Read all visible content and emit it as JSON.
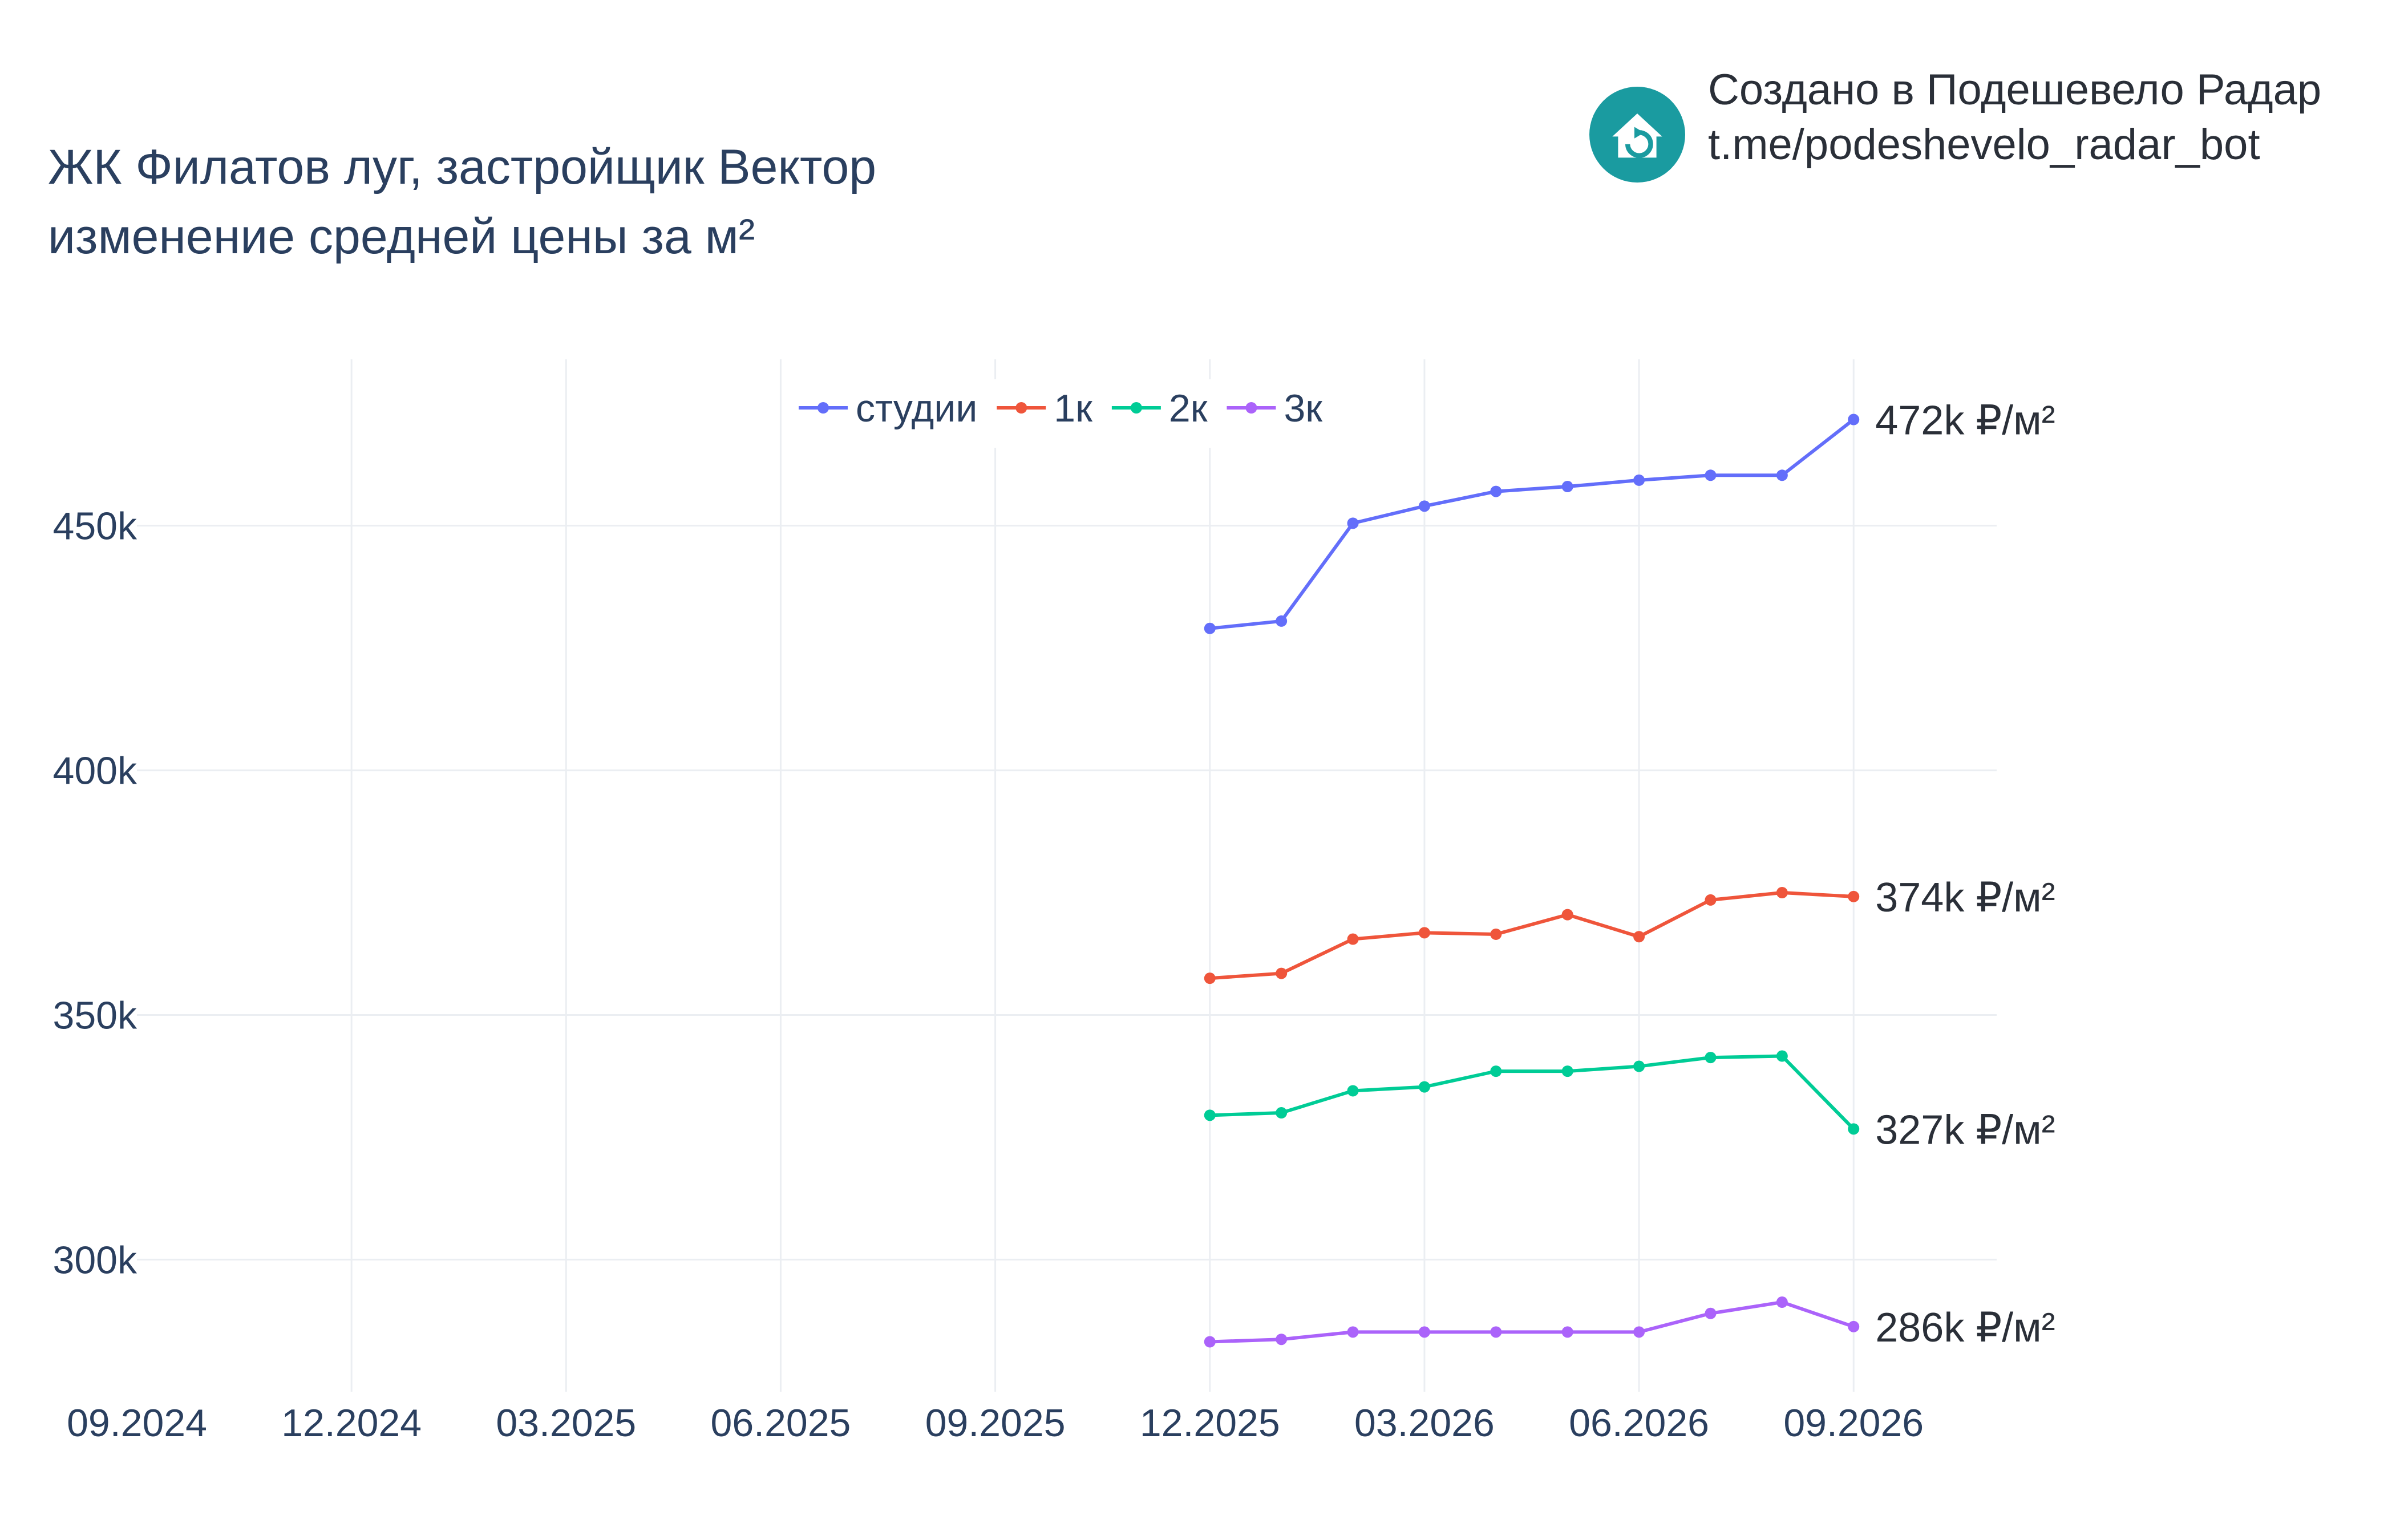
{
  "title": {
    "line1": "ЖК Филатов луг, застройщик Вектор",
    "line2": "изменение средней цены за м²"
  },
  "branding": {
    "icon": "house-refresh-icon",
    "line1": "Создано в Подешевело Радар",
    "line2": "t.me/podeshevelo_radar_bot",
    "color": "#1a9ba0"
  },
  "chart_data": {
    "type": "line",
    "x_tick_labels": [
      "09.2024",
      "12.2024",
      "03.2025",
      "06.2025",
      "09.2025",
      "12.2025",
      "03.2026",
      "06.2026",
      "09.2026"
    ],
    "x_tick_dates": [
      "2024-09",
      "2024-12",
      "2025-03",
      "2025-06",
      "2025-09",
      "2025-12",
      "2026-03",
      "2026-06",
      "2026-09"
    ],
    "x": [
      "2025-12",
      "2026-01",
      "2026-02",
      "2026-03",
      "2026-04",
      "2026-05",
      "2026-06",
      "2026-07",
      "2026-08",
      "2026-09"
    ],
    "xlim": [
      "2024-09",
      "2026-11"
    ],
    "y_ticks": [
      300000,
      350000,
      400000,
      450000
    ],
    "y_tick_labels": [
      "300k",
      "350k",
      "400k",
      "450k"
    ],
    "ylim": [
      273000,
      484000
    ],
    "grid": true,
    "legend": "top-center",
    "series": [
      {
        "name": "студии",
        "color": "#636efa",
        "values": [
          429000,
          430500,
          450500,
          454000,
          457000,
          458000,
          459300,
          460300,
          460300,
          471700
        ],
        "end_label": "472k ₽/м²"
      },
      {
        "name": "1к",
        "color": "#ef553b",
        "values": [
          357500,
          358500,
          365500,
          366800,
          366500,
          370500,
          366000,
          373500,
          375000,
          374200
        ],
        "end_label": "374k ₽/м²"
      },
      {
        "name": "2к",
        "color": "#00cc96",
        "values": [
          329500,
          330000,
          334500,
          335300,
          338500,
          338500,
          339500,
          341300,
          341600,
          326700
        ],
        "end_label": "327k ₽/м²"
      },
      {
        "name": "3к",
        "color": "#ab63fa",
        "values": [
          283200,
          283700,
          285200,
          285200,
          285200,
          285200,
          285200,
          289000,
          291300,
          286300
        ],
        "end_label": "286k ₽/м²"
      }
    ]
  }
}
